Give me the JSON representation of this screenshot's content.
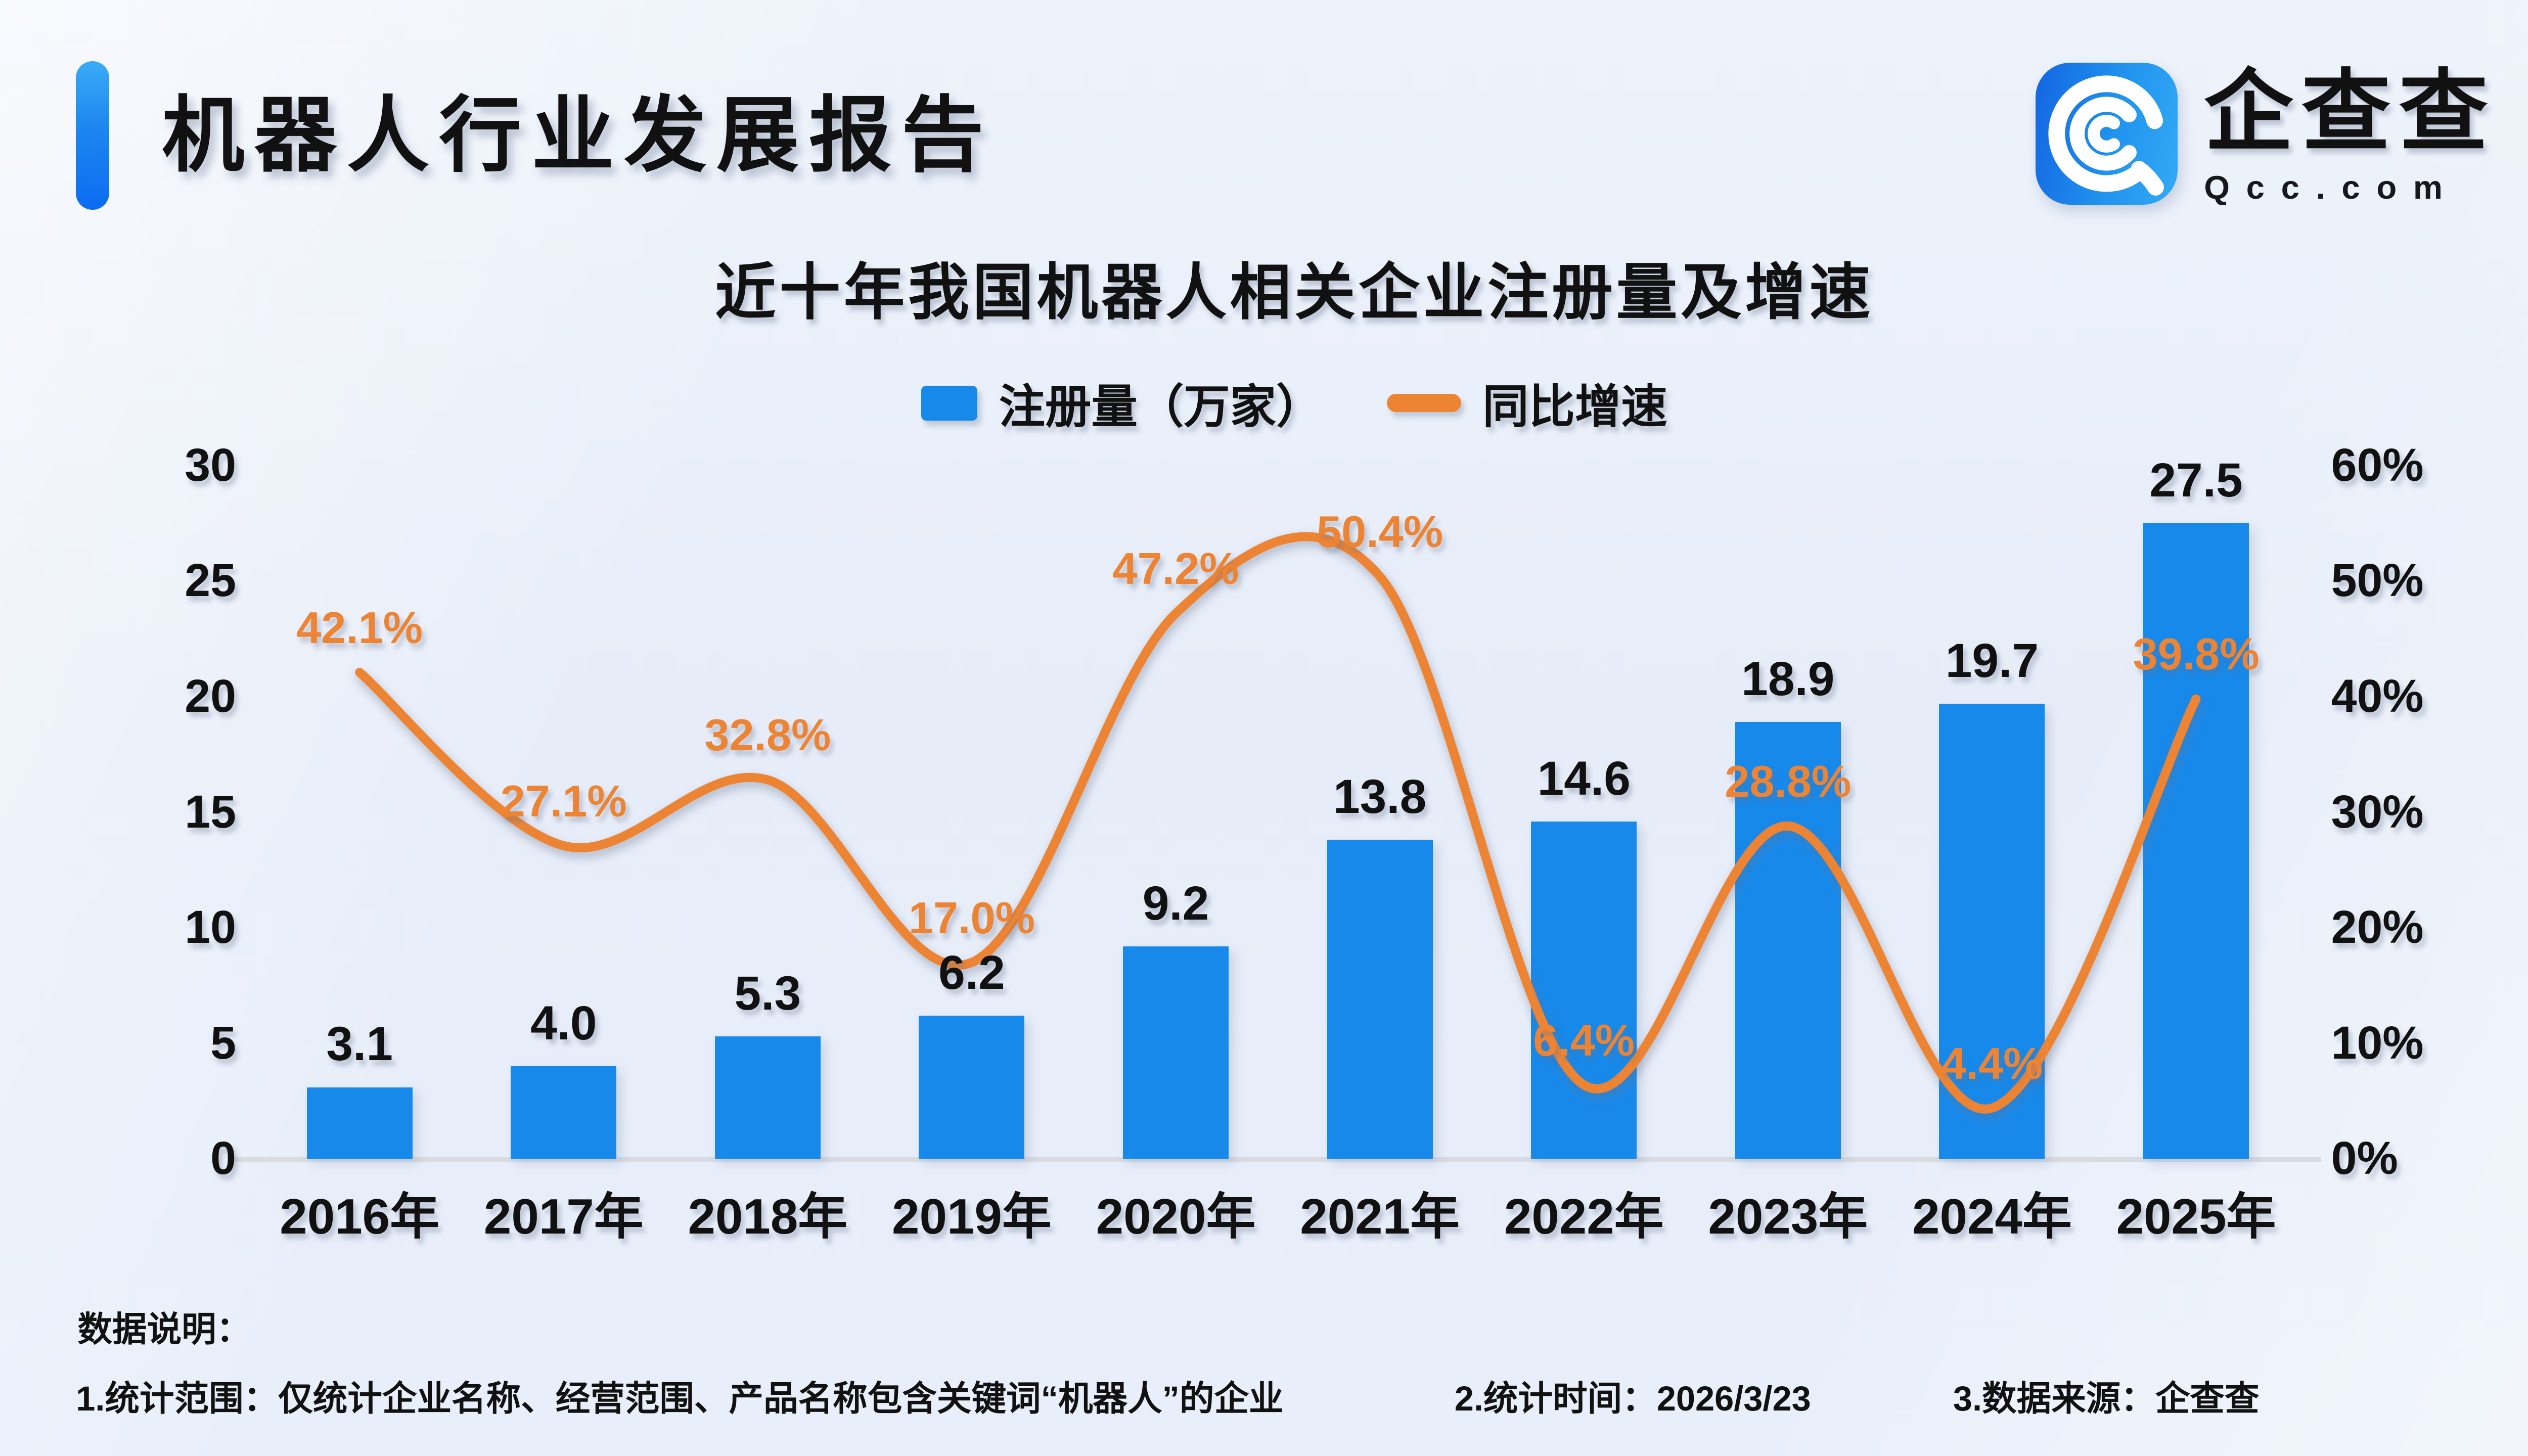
{
  "page": {
    "report_title": "机器人行业发展报告",
    "logo": {
      "icon": "qcc-spiral-icon",
      "brand_name": "企查查",
      "brand_domain": "Qcc.com"
    },
    "footer": {
      "heading": "数据说明：",
      "note_scope": "1.统计范围：仅统计企业名称、经营范围、产品名称包含关键词“机器人”的企业",
      "note_time": "2.统计时间：2026/3/23",
      "note_source": "3.数据来源：企查查"
    }
  },
  "colors": {
    "bar_blue": "#1789ea",
    "line_orange": "#ed8433",
    "accent_blue": "#0c6cf2",
    "axis_line_gray": "#d8dbe2"
  },
  "chart_data": {
    "type": "bar+line",
    "title": "近十年我国机器人相关企业注册量及增速",
    "categories": [
      "2016年",
      "2017年",
      "2018年",
      "2019年",
      "2020年",
      "2021年",
      "2022年",
      "2023年",
      "2024年",
      "2025年"
    ],
    "series": [
      {
        "name": "注册量（万家）",
        "type": "bar",
        "axis": "left",
        "color": "#1789ea",
        "values": [
          3.1,
          4.0,
          5.3,
          6.2,
          9.2,
          13.8,
          14.6,
          18.9,
          19.7,
          27.5
        ]
      },
      {
        "name": "同比增速",
        "type": "line",
        "axis": "right",
        "color": "#ed8433",
        "unit": "%",
        "smooth": true,
        "values": [
          42.1,
          27.1,
          32.8,
          17.0,
          47.2,
          50.4,
          6.4,
          28.8,
          4.4,
          39.8
        ]
      }
    ],
    "left_axis": {
      "min": 0,
      "max": 30,
      "step": 5
    },
    "right_axis": {
      "min": 0,
      "max": 60,
      "step": 10,
      "unit": "%"
    },
    "legend_position": "top-center",
    "grid": false,
    "data_labels": true
  }
}
